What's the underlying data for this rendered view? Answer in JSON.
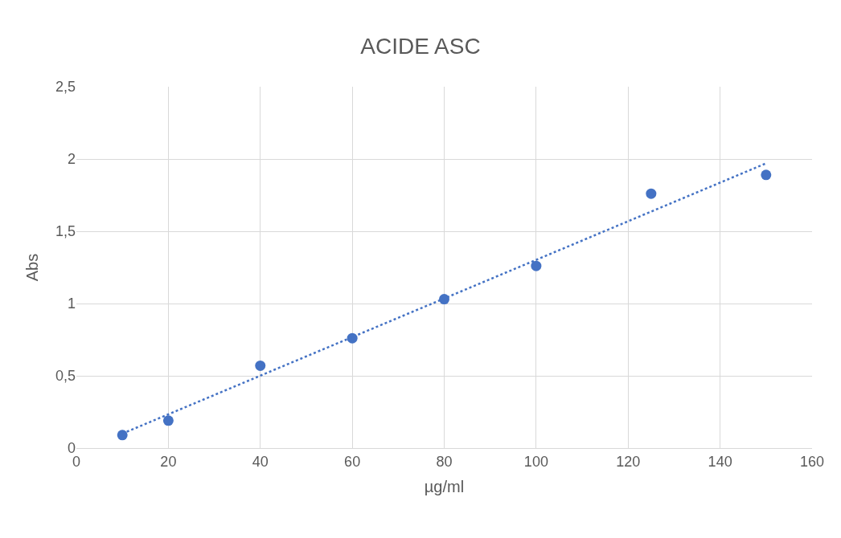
{
  "chart_data": {
    "type": "scatter",
    "title": "ACIDE ASC",
    "xlabel": "µg/ml",
    "ylabel": "Abs",
    "x": [
      10,
      20,
      40,
      60,
      80,
      100,
      125,
      150
    ],
    "series": [
      {
        "color": "#4472c4",
        "values": [
          0.09,
          0.19,
          0.57,
          0.76,
          1.03,
          1.26,
          1.76,
          1.89
        ],
        "marker": "circle"
      },
      {
        "type": "line",
        "color": "#4472c4",
        "x": [
          10,
          150
        ],
        "values": [
          0.1,
          1.97
        ],
        "line_style": "dotted",
        "marker": "none"
      }
    ],
    "xlim": [
      0,
      160
    ],
    "xticks": [
      0,
      20,
      40,
      60,
      80,
      100,
      120,
      140,
      160
    ],
    "ylim": [
      0,
      2.5
    ],
    "yticks": [
      0,
      {
        "value": 0.5,
        "label": "0,5"
      },
      1,
      {
        "value": 1.5,
        "label": "1,5"
      },
      2,
      {
        "value": 2.5,
        "label": "2,5"
      }
    ],
    "grid": true,
    "legend": false
  }
}
